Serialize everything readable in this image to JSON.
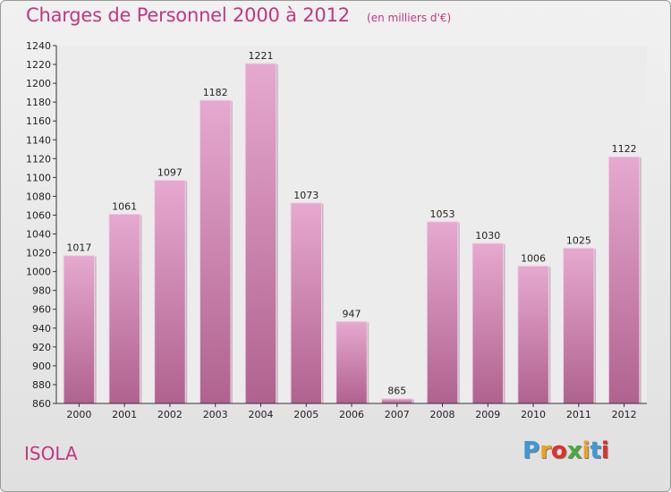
{
  "chart_data": {
    "type": "bar",
    "title": "Charges de Personnel 2000 à 2012",
    "subtitle": "(en milliers d'€)",
    "xlabel": "",
    "ylabel": "",
    "categories": [
      "2000",
      "2001",
      "2002",
      "2003",
      "2004",
      "2005",
      "2006",
      "2007",
      "2008",
      "2009",
      "2010",
      "2011",
      "2012"
    ],
    "values": [
      1017,
      1061,
      1097,
      1182,
      1221,
      1073,
      947,
      865,
      1053,
      1030,
      1006,
      1025,
      1122
    ],
    "ylim": [
      860,
      1240
    ],
    "yticks": [
      860,
      880,
      900,
      920,
      940,
      960,
      980,
      1000,
      1020,
      1040,
      1060,
      1080,
      1100,
      1120,
      1140,
      1160,
      1180,
      1200,
      1220,
      1240
    ],
    "grid": false,
    "bar_color": "#d98ab8"
  },
  "place": "ISOLA",
  "logo": {
    "letters": [
      "P",
      "r",
      "o",
      "x",
      "i",
      "t",
      "i"
    ],
    "colors": [
      "#3a9ad9",
      "#f0a020",
      "#e0302a",
      "#4aaa3c",
      "#f0a020",
      "#3a9ad9",
      "#e0302a"
    ]
  }
}
